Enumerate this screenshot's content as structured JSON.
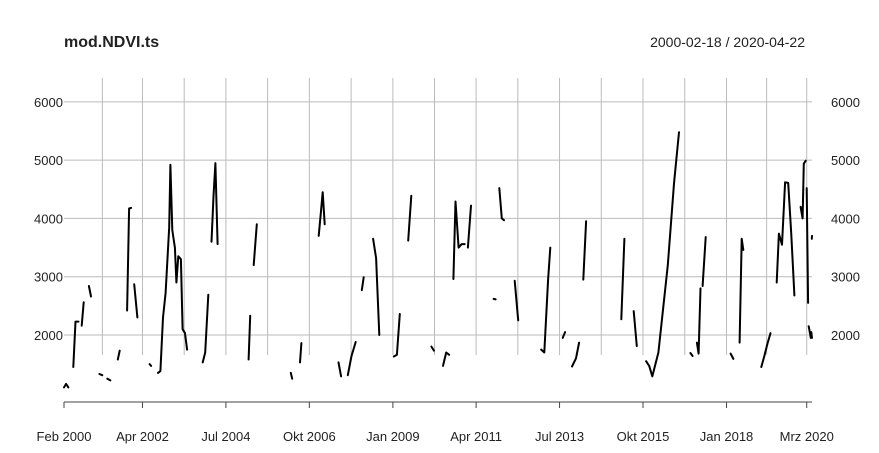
{
  "chart_data": {
    "type": "line",
    "title": "mod.NDVI.ts",
    "date_range_label": "2000-02-18 / 2020-04-22",
    "xlabel": "",
    "ylabel": "",
    "xlim": [
      "2000-02-18",
      "2020-04-22"
    ],
    "ylim": [
      850,
      6650
    ],
    "grid": true,
    "y_ticks": [
      2000,
      3000,
      4000,
      5000,
      6000
    ],
    "y_tick_labels": [
      "2000",
      "3000",
      "4000",
      "5000",
      "6000"
    ],
    "x_tick_labels": [
      "Feb 2000",
      "Apr 2002",
      "Jul 2004",
      "Okt 2006",
      "Jan 2009",
      "Apr 2011",
      "Jul 2013",
      "Okt 2015",
      "Jan 2018",
      "Mrz 2020"
    ],
    "x_tick_dates": [
      "2000-02-01",
      "2002-04-01",
      "2004-07-01",
      "2006-10-01",
      "2009-01-01",
      "2011-04-01",
      "2013-07-01",
      "2015-10-01",
      "2018-01-01",
      "2020-03-01"
    ],
    "series": [
      {
        "color": "#000000",
        "segments": [
          [
            [
              "2000-02-18",
              1100
            ],
            [
              "2000-03-10",
              1160
            ],
            [
              "2000-04-01",
              1100
            ]
          ],
          [
            [
              "2000-05-20",
              1450
            ],
            [
              "2000-06-10",
              2230
            ],
            [
              "2000-07-10",
              2230
            ]
          ],
          [
            [
              "2000-08-10",
              2160
            ],
            [
              "2000-08-30",
              2560
            ]
          ],
          [
            [
              "2000-10-20",
              2840
            ],
            [
              "2000-11-10",
              2660
            ]
          ],
          [
            [
              "2001-02-01",
              1330
            ],
            [
              "2001-03-01",
              1310
            ]
          ],
          [
            [
              "2001-04-20",
              1250
            ],
            [
              "2001-05-20",
              1220
            ]
          ],
          [
            [
              "2001-08-01",
              1580
            ],
            [
              "2001-08-20",
              1730
            ]
          ],
          [
            [
              "2001-11-01",
              2420
            ],
            [
              "2001-11-20",
              4170
            ],
            [
              "2001-12-10",
              4180
            ]
          ],
          [
            [
              "2002-01-10",
              2870
            ],
            [
              "2002-02-10",
              2300
            ]
          ],
          [
            [
              "2002-06-10",
              1500
            ],
            [
              "2002-06-25",
              1470
            ]
          ],
          [
            [
              "2002-09-01",
              1350
            ],
            [
              "2002-09-25",
              1380
            ],
            [
              "2002-10-20",
              2300
            ],
            [
              "2002-11-15",
              2720
            ],
            [
              "2002-12-20",
              3850
            ],
            [
              "2003-01-01",
              4920
            ],
            [
              "2003-01-20",
              3800
            ],
            [
              "2003-02-15",
              3500
            ],
            [
              "2003-03-01",
              2900
            ],
            [
              "2003-03-20",
              3350
            ],
            [
              "2003-04-15",
              3300
            ],
            [
              "2003-05-01",
              2100
            ],
            [
              "2003-05-25",
              2030
            ],
            [
              "2003-06-15",
              1750
            ]
          ],
          [
            [
              "2003-11-15",
              1530
            ],
            [
              "2003-12-10",
              1700
            ],
            [
              "2004-01-10",
              2690
            ]
          ],
          [
            [
              "2004-02-10",
              3600
            ],
            [
              "2004-03-01",
              4380
            ],
            [
              "2004-03-20",
              4950
            ],
            [
              "2004-04-10",
              3560
            ]
          ],
          [
            [
              "2005-02-10",
              1580
            ],
            [
              "2005-02-25",
              2330
            ]
          ],
          [
            [
              "2005-04-01",
              3200
            ],
            [
              "2005-05-01",
              3900
            ]
          ],
          [
            [
              "2006-04-01",
              1350
            ],
            [
              "2006-04-15",
              1250
            ]
          ],
          [
            [
              "2006-07-01",
              1530
            ],
            [
              "2006-07-15",
              1860
            ]
          ],
          [
            [
              "2007-01-01",
              3700
            ],
            [
              "2007-01-20",
              4050
            ],
            [
              "2007-02-10",
              4450
            ],
            [
              "2007-03-01",
              3900
            ]
          ],
          [
            [
              "2007-07-15",
              1530
            ],
            [
              "2007-08-10",
              1290
            ]
          ],
          [
            [
              "2007-10-15",
              1310
            ],
            [
              "2007-11-20",
              1640
            ],
            [
              "2008-01-01",
              1880
            ]
          ],
          [
            [
              "2008-03-01",
              2770
            ],
            [
              "2008-03-20",
              2990
            ]
          ],
          [
            [
              "2008-06-20",
              3650
            ],
            [
              "2008-07-20",
              3320
            ],
            [
              "2008-08-20",
              2000
            ]
          ],
          [
            [
              "2009-01-10",
              1630
            ],
            [
              "2009-02-10",
              1660
            ],
            [
              "2009-03-10",
              2360
            ]
          ],
          [
            [
              "2009-06-01",
              3620
            ],
            [
              "2009-07-01",
              4390
            ]
          ],
          [
            [
              "2010-01-15",
              1800
            ],
            [
              "2010-02-10",
              1730
            ]
          ],
          [
            [
              "2010-05-10",
              1470
            ],
            [
              "2010-06-10",
              1700
            ],
            [
              "2010-07-10",
              1660
            ]
          ],
          [
            [
              "2010-08-20",
              2960
            ],
            [
              "2010-09-10",
              4290
            ],
            [
              "2010-10-10",
              3500
            ],
            [
              "2010-11-10",
              3560
            ],
            [
              "2010-12-10",
              3560
            ]
          ],
          [
            [
              "2011-01-10",
              3500
            ],
            [
              "2011-02-10",
              4220
            ]
          ],
          [
            [
              "2011-09-20",
              2620
            ],
            [
              "2011-10-10",
              2610
            ]
          ],
          [
            [
              "2011-11-15",
              4520
            ],
            [
              "2011-12-10",
              4000
            ],
            [
              "2012-01-01",
              3970
            ]
          ],
          [
            [
              "2012-04-15",
              2930
            ],
            [
              "2012-05-20",
              2250
            ]
          ],
          [
            [
              "2013-01-01",
              1750
            ],
            [
              "2013-02-01",
              1700
            ],
            [
              "2013-03-10",
              2950
            ],
            [
              "2013-04-01",
              3500
            ]
          ],
          [
            [
              "2013-08-01",
              1950
            ],
            [
              "2013-08-25",
              2050
            ]
          ],
          [
            [
              "2013-11-01",
              1460
            ],
            [
              "2013-12-10",
              1600
            ],
            [
              "2014-01-10",
              1870
            ]
          ],
          [
            [
              "2014-02-20",
              2950
            ],
            [
              "2014-03-20",
              3950
            ]
          ],
          [
            [
              "2015-03-01",
              2270
            ],
            [
              "2015-04-01",
              3650
            ]
          ],
          [
            [
              "2015-07-01",
              2410
            ],
            [
              "2015-08-01",
              1810
            ]
          ],
          [
            [
              "2015-11-01",
              1550
            ],
            [
              "2015-12-01",
              1470
            ],
            [
              "2016-01-01",
              1290
            ],
            [
              "2016-03-01",
              1700
            ],
            [
              "2016-06-01",
              3200
            ],
            [
              "2016-08-01",
              4600
            ],
            [
              "2016-09-20",
              5480
            ]
          ],
          [
            [
              "2017-01-10",
              1690
            ],
            [
              "2017-02-01",
              1640
            ]
          ],
          [
            [
              "2017-03-15",
              1870
            ],
            [
              "2017-04-01",
              1680
            ],
            [
              "2017-04-20",
              2800
            ]
          ],
          [
            [
              "2017-05-10",
              2840
            ],
            [
              "2017-06-10",
              3680
            ]
          ],
          [
            [
              "2018-02-10",
              1680
            ],
            [
              "2018-03-10",
              1590
            ]
          ],
          [
            [
              "2018-05-10",
              1870
            ],
            [
              "2018-05-30",
              3650
            ],
            [
              "2018-06-15",
              3460
            ]
          ],
          [
            [
              "2018-12-10",
              1450
            ],
            [
              "2019-01-10",
              1650
            ],
            [
              "2019-02-10",
              1860
            ],
            [
              "2019-03-10",
              2030
            ]
          ],
          [
            [
              "2019-05-10",
              2900
            ],
            [
              "2019-06-01",
              3740
            ],
            [
              "2019-07-01",
              3550
            ],
            [
              "2019-08-01",
              4620
            ],
            [
              "2019-09-01",
              4610
            ],
            [
              "2019-10-01",
              3720
            ],
            [
              "2019-11-01",
              2680
            ]
          ],
          [
            [
              "2020-01-01",
              4200
            ],
            [
              "2020-01-20",
              4000
            ],
            [
              "2020-02-01",
              4940
            ],
            [
              "2020-02-20",
              4990
            ]
          ],
          [
            [
              "2020-03-01",
              4520
            ],
            [
              "2020-03-15",
              2550
            ]
          ],
          [
            [
              "2020-03-20",
              2150
            ],
            [
              "2020-04-10",
              1950
            ],
            [
              "2020-04-15",
              2050
            ],
            [
              "2020-04-22",
              1950
            ]
          ],
          [
            [
              "2020-04-20",
              3650
            ],
            [
              "2020-04-22",
              3700
            ]
          ]
        ]
      }
    ]
  }
}
